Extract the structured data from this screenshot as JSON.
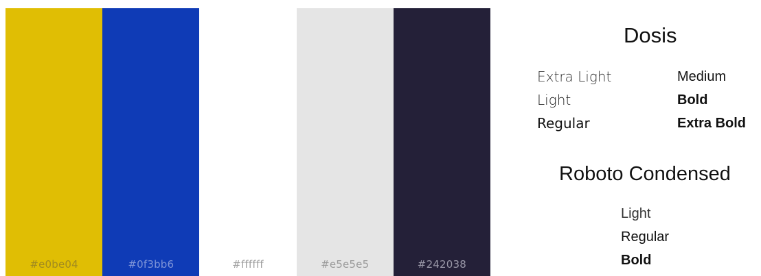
{
  "colors": [
    {
      "hex": "#e0be04",
      "label": "#e0be04",
      "label_color": "#a08a20"
    },
    {
      "hex": "#0f3bb6",
      "label": "#0f3bb6",
      "label_color": "#7f95d8"
    },
    {
      "hex": "#ffffff",
      "label": "#ffffff",
      "label_color": "#a0a0a0"
    },
    {
      "hex": "#e5e5e5",
      "label": "#e5e5e5",
      "label_color": "#9a9a9a"
    },
    {
      "hex": "#242038",
      "label": "#242038",
      "label_color": "#9a98a8"
    }
  ],
  "fonts": {
    "dosis": {
      "name": "Dosis",
      "weights_left": [
        "Extra Light",
        "Light",
        "Regular"
      ],
      "weights_right": [
        "Medium",
        "Bold",
        "Extra Bold"
      ]
    },
    "roboto_condensed": {
      "name": "Roboto Condensed",
      "weights": [
        "Light",
        "Regular",
        "Bold"
      ]
    }
  }
}
